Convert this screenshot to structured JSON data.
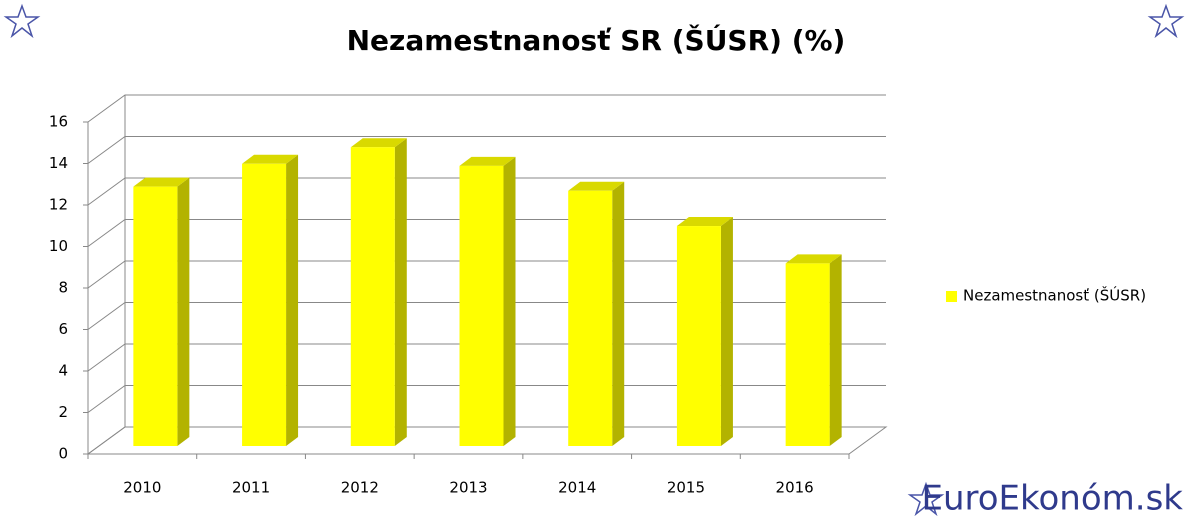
{
  "chart_data": {
    "type": "bar3d",
    "title": "Nezamestnanosť SR (ŠÚSR) (%)",
    "categories": [
      "2010",
      "2011",
      "2012",
      "2013",
      "2014",
      "2015",
      "2016"
    ],
    "series": [
      {
        "name": "Nezamestnanosť  (ŠÚSR)",
        "color": "#ffff00",
        "values": [
          12.5,
          13.6,
          14.4,
          13.5,
          12.3,
          10.6,
          8.8
        ]
      }
    ],
    "ylim": [
      0,
      16
    ],
    "yticks": [
      0,
      2,
      4,
      6,
      8,
      10,
      12,
      14,
      16
    ],
    "grid": true,
    "legend": "right"
  },
  "watermark": "EuroEkonóm.sk"
}
